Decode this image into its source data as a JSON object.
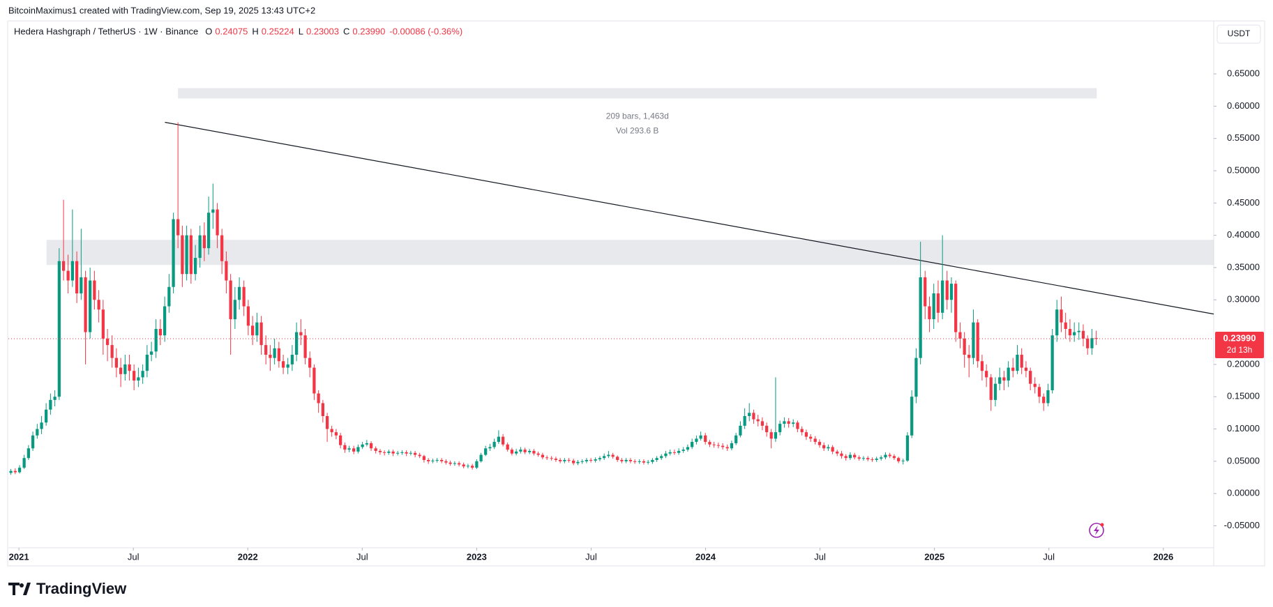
{
  "header": {
    "author_line": "BitcoinMaximus1 created with TradingView.com, Sep 19, 2025 13:43 UTC+2",
    "symbol": "Hedera Hashgraph / TetherUS · 1W · Binance",
    "ohlc": [
      {
        "key": "O",
        "value": "0.24075"
      },
      {
        "key": "H",
        "value": "0.25224"
      },
      {
        "key": "L",
        "value": "0.23003"
      },
      {
        "key": "C",
        "value": "0.23990"
      }
    ],
    "change": "-0.00086 (-0.36%)",
    "currency": "USDT"
  },
  "footer": {
    "brand": "TradingView"
  },
  "chart_data": {
    "type": "candlestick",
    "up_color": "#089981",
    "down_color": "#f23645",
    "xlim": [
      2020.954,
      2026.22
    ],
    "xticks": [
      2021,
      {
        "value": 2021.5,
        "label": "Jul"
      },
      2022,
      {
        "value": 2022.5,
        "label": "Jul"
      },
      2023,
      {
        "value": 2023.5,
        "label": "Jul"
      },
      2024,
      {
        "value": 2024.5,
        "label": "Jul"
      },
      2025,
      {
        "value": 2025.5,
        "label": "Jul"
      },
      2026
    ],
    "ylim": [
      -0.084,
      0.731
    ],
    "yticks": [
      {
        "value": 0.65,
        "label": "0.65000"
      },
      {
        "value": 0.6,
        "label": "0.60000"
      },
      {
        "value": 0.55,
        "label": "0.55000"
      },
      {
        "value": 0.5,
        "label": "0.50000"
      },
      {
        "value": 0.45,
        "label": "0.45000"
      },
      {
        "value": 0.4,
        "label": "0.40000"
      },
      {
        "value": 0.35,
        "label": "0.35000"
      },
      {
        "value": 0.3,
        "label": "0.30000"
      },
      {
        "value": 0.2,
        "label": "0.20000"
      },
      {
        "value": 0.15,
        "label": "0.15000"
      },
      {
        "value": 0.1,
        "label": "0.10000"
      },
      {
        "value": 0.05,
        "label": "0.05000"
      },
      {
        "value": 0,
        "label": "0.00000"
      },
      {
        "value": -0.05,
        "label": "-0.05000"
      }
    ],
    "price_label": "0.23990",
    "countdown": "2d 13h",
    "annotations": {
      "trendline": {
        "x": [
          2021.638,
          2026.22
        ],
        "y": [
          0.575,
          0.278
        ]
      },
      "ranges": [
        {
          "x": [
            2021.695,
            2025.709
          ],
          "y": [
            0.612,
            0.628
          ]
        },
        {
          "x": [
            2021.121,
            2026.22
          ],
          "y": [
            0.354,
            0.393
          ]
        }
      ],
      "measure_text": [
        "209 bars, 1,463d",
        "Vol 293.6 B"
      ]
    },
    "x": [
      2020.965,
      2020.984,
      2021.003,
      2021.023,
      2021.042,
      2021.061,
      2021.08,
      2021.099,
      2021.119,
      2021.138,
      2021.157,
      2021.176,
      2021.195,
      2021.215,
      2021.234,
      2021.253,
      2021.272,
      2021.291,
      2021.311,
      2021.33,
      2021.349,
      2021.368,
      2021.387,
      2021.407,
      2021.426,
      2021.445,
      2021.464,
      2021.483,
      2021.503,
      2021.522,
      2021.541,
      2021.56,
      2021.579,
      2021.599,
      2021.618,
      2021.637,
      2021.656,
      2021.675,
      2021.695,
      2021.714,
      2021.733,
      2021.752,
      2021.771,
      2021.791,
      2021.81,
      2021.829,
      2021.848,
      2021.867,
      2021.887,
      2021.906,
      2021.925,
      2021.944,
      2021.963,
      2021.983,
      2022.002,
      2022.021,
      2022.04,
      2022.059,
      2022.079,
      2022.098,
      2022.117,
      2022.136,
      2022.155,
      2022.175,
      2022.194,
      2022.213,
      2022.232,
      2022.251,
      2022.271,
      2022.29,
      2022.309,
      2022.328,
      2022.347,
      2022.367,
      2022.386,
      2022.405,
      2022.424,
      2022.443,
      2022.463,
      2022.482,
      2022.501,
      2022.52,
      2022.539,
      2022.559,
      2022.578,
      2022.597,
      2022.616,
      2022.635,
      2022.655,
      2022.674,
      2022.693,
      2022.712,
      2022.731,
      2022.751,
      2022.77,
      2022.789,
      2022.808,
      2022.827,
      2022.847,
      2022.866,
      2022.885,
      2022.904,
      2022.923,
      2022.943,
      2022.962,
      2022.981,
      2023.0,
      2023.019,
      2023.039,
      2023.058,
      2023.077,
      2023.096,
      2023.115,
      2023.135,
      2023.154,
      2023.173,
      2023.192,
      2023.211,
      2023.231,
      2023.25,
      2023.269,
      2023.288,
      2023.307,
      2023.327,
      2023.346,
      2023.365,
      2023.384,
      2023.403,
      2023.423,
      2023.442,
      2023.461,
      2023.48,
      2023.499,
      2023.519,
      2023.538,
      2023.557,
      2023.576,
      2023.595,
      2023.615,
      2023.634,
      2023.653,
      2023.672,
      2023.691,
      2023.711,
      2023.73,
      2023.749,
      2023.768,
      2023.787,
      2023.807,
      2023.826,
      2023.845,
      2023.864,
      2023.883,
      2023.903,
      2023.922,
      2023.941,
      2023.96,
      2023.979,
      2023.999,
      2024.018,
      2024.037,
      2024.056,
      2024.075,
      2024.095,
      2024.114,
      2024.133,
      2024.152,
      2024.171,
      2024.191,
      2024.21,
      2024.229,
      2024.248,
      2024.267,
      2024.287,
      2024.306,
      2024.325,
      2024.344,
      2024.363,
      2024.383,
      2024.402,
      2024.421,
      2024.44,
      2024.459,
      2024.479,
      2024.498,
      2024.517,
      2024.536,
      2024.555,
      2024.575,
      2024.594,
      2024.613,
      2024.632,
      2024.651,
      2024.671,
      2024.69,
      2024.709,
      2024.728,
      2024.747,
      2024.767,
      2024.786,
      2024.805,
      2024.824,
      2024.843,
      2024.863,
      2024.882,
      2024.901,
      2024.92,
      2024.939,
      2024.959,
      2024.978,
      2024.997,
      2025.016,
      2025.035,
      2025.055,
      2025.074,
      2025.093,
      2025.112,
      2025.131,
      2025.151,
      2025.17,
      2025.189,
      2025.208,
      2025.227,
      2025.247,
      2025.266,
      2025.285,
      2025.304,
      2025.323,
      2025.343,
      2025.362,
      2025.381,
      2025.4,
      2025.419,
      2025.439,
      2025.458,
      2025.477,
      2025.496,
      2025.515,
      2025.535,
      2025.554,
      2025.573,
      2025.592,
      2025.611,
      2025.631,
      2025.65,
      2025.669,
      2025.688,
      2025.707
    ],
    "open": [
      0.032,
      0.035,
      0.033,
      0.04,
      0.055,
      0.07,
      0.09,
      0.1,
      0.11,
      0.13,
      0.145,
      0.15,
      0.36,
      0.345,
      0.33,
      0.36,
      0.31,
      0.335,
      0.25,
      0.33,
      0.3,
      0.285,
      0.24,
      0.23,
      0.21,
      0.195,
      0.185,
      0.2,
      0.19,
      0.175,
      0.18,
      0.19,
      0.215,
      0.22,
      0.255,
      0.245,
      0.29,
      0.32,
      0.425,
      0.4,
      0.34,
      0.4,
      0.34,
      0.365,
      0.4,
      0.38,
      0.435,
      0.44,
      0.4,
      0.36,
      0.33,
      0.27,
      0.3,
      0.32,
      0.29,
      0.26,
      0.245,
      0.265,
      0.23,
      0.215,
      0.21,
      0.225,
      0.205,
      0.195,
      0.2,
      0.215,
      0.25,
      0.245,
      0.21,
      0.195,
      0.155,
      0.14,
      0.12,
      0.1,
      0.095,
      0.09,
      0.075,
      0.068,
      0.07,
      0.065,
      0.072,
      0.076,
      0.078,
      0.07,
      0.066,
      0.064,
      0.063,
      0.065,
      0.062,
      0.063,
      0.064,
      0.062,
      0.063,
      0.06,
      0.058,
      0.052,
      0.05,
      0.051,
      0.052,
      0.05,
      0.048,
      0.046,
      0.047,
      0.045,
      0.042,
      0.043,
      0.04,
      0.05,
      0.06,
      0.07,
      0.072,
      0.08,
      0.088,
      0.076,
      0.068,
      0.062,
      0.065,
      0.068,
      0.064,
      0.066,
      0.062,
      0.06,
      0.056,
      0.055,
      0.054,
      0.052,
      0.05,
      0.052,
      0.051,
      0.047,
      0.049,
      0.05,
      0.052,
      0.051,
      0.053,
      0.055,
      0.058,
      0.06,
      0.057,
      0.052,
      0.05,
      0.052,
      0.05,
      0.049,
      0.05,
      0.048,
      0.049,
      0.052,
      0.055,
      0.058,
      0.062,
      0.064,
      0.063,
      0.066,
      0.068,
      0.072,
      0.08,
      0.085,
      0.09,
      0.08,
      0.076,
      0.075,
      0.074,
      0.072,
      0.07,
      0.078,
      0.09,
      0.105,
      0.12,
      0.125,
      0.115,
      0.112,
      0.105,
      0.095,
      0.085,
      0.095,
      0.108,
      0.112,
      0.108,
      0.11,
      0.1,
      0.095,
      0.088,
      0.085,
      0.08,
      0.075,
      0.07,
      0.072,
      0.065,
      0.062,
      0.058,
      0.055,
      0.06,
      0.056,
      0.054,
      0.055,
      0.053,
      0.052,
      0.054,
      0.056,
      0.06,
      0.058,
      0.055,
      0.05,
      0.051,
      0.09,
      0.15,
      0.21,
      0.335,
      0.29,
      0.27,
      0.31,
      0.28,
      0.33,
      0.3,
      0.325,
      0.25,
      0.24,
      0.215,
      0.21,
      0.265,
      0.205,
      0.19,
      0.18,
      0.145,
      0.17,
      0.18,
      0.175,
      0.195,
      0.19,
      0.215,
      0.195,
      0.19,
      0.17,
      0.165,
      0.15,
      0.14,
      0.16,
      0.245,
      0.285,
      0.265,
      0.255,
      0.245,
      0.25,
      0.252,
      0.24,
      0.225,
      0.24075
    ],
    "high": [
      0.038,
      0.039,
      0.044,
      0.06,
      0.075,
      0.096,
      0.108,
      0.12,
      0.14,
      0.155,
      0.16,
      0.38,
      0.455,
      0.37,
      0.44,
      0.375,
      0.41,
      0.345,
      0.35,
      0.345,
      0.315,
      0.3,
      0.255,
      0.245,
      0.225,
      0.21,
      0.215,
      0.215,
      0.2,
      0.195,
      0.2,
      0.23,
      0.235,
      0.27,
      0.27,
      0.305,
      0.34,
      0.435,
      0.575,
      0.415,
      0.415,
      0.41,
      0.385,
      0.415,
      0.42,
      0.46,
      0.48,
      0.45,
      0.41,
      0.375,
      0.34,
      0.32,
      0.335,
      0.33,
      0.3,
      0.275,
      0.28,
      0.275,
      0.245,
      0.23,
      0.24,
      0.235,
      0.215,
      0.21,
      0.23,
      0.265,
      0.27,
      0.255,
      0.22,
      0.2,
      0.16,
      0.145,
      0.125,
      0.105,
      0.1,
      0.094,
      0.079,
      0.074,
      0.074,
      0.076,
      0.08,
      0.083,
      0.081,
      0.073,
      0.069,
      0.067,
      0.068,
      0.068,
      0.066,
      0.067,
      0.067,
      0.066,
      0.066,
      0.063,
      0.06,
      0.055,
      0.054,
      0.055,
      0.055,
      0.053,
      0.051,
      0.05,
      0.05,
      0.048,
      0.046,
      0.046,
      0.053,
      0.063,
      0.074,
      0.077,
      0.085,
      0.098,
      0.092,
      0.079,
      0.071,
      0.069,
      0.072,
      0.071,
      0.069,
      0.069,
      0.065,
      0.063,
      0.059,
      0.058,
      0.057,
      0.055,
      0.055,
      0.055,
      0.054,
      0.052,
      0.053,
      0.055,
      0.055,
      0.056,
      0.058,
      0.062,
      0.066,
      0.063,
      0.059,
      0.055,
      0.055,
      0.055,
      0.053,
      0.053,
      0.053,
      0.052,
      0.055,
      0.058,
      0.061,
      0.066,
      0.068,
      0.068,
      0.07,
      0.072,
      0.076,
      0.085,
      0.09,
      0.096,
      0.094,
      0.083,
      0.08,
      0.079,
      0.078,
      0.076,
      0.082,
      0.094,
      0.112,
      0.132,
      0.14,
      0.13,
      0.122,
      0.118,
      0.11,
      0.1,
      0.18,
      0.113,
      0.118,
      0.117,
      0.115,
      0.113,
      0.104,
      0.099,
      0.092,
      0.089,
      0.084,
      0.079,
      0.076,
      0.075,
      0.068,
      0.066,
      0.061,
      0.064,
      0.063,
      0.059,
      0.058,
      0.058,
      0.056,
      0.057,
      0.059,
      0.064,
      0.063,
      0.061,
      0.057,
      0.054,
      0.095,
      0.16,
      0.225,
      0.39,
      0.345,
      0.305,
      0.325,
      0.33,
      0.4,
      0.345,
      0.335,
      0.33,
      0.265,
      0.25,
      0.23,
      0.285,
      0.27,
      0.215,
      0.2,
      0.185,
      0.18,
      0.195,
      0.19,
      0.205,
      0.21,
      0.23,
      0.225,
      0.205,
      0.195,
      0.18,
      0.17,
      0.155,
      0.17,
      0.255,
      0.3,
      0.305,
      0.28,
      0.27,
      0.265,
      0.265,
      0.262,
      0.245,
      0.255,
      0.25224
    ],
    "low": [
      0.029,
      0.03,
      0.031,
      0.038,
      0.052,
      0.066,
      0.085,
      0.092,
      0.105,
      0.122,
      0.135,
      0.145,
      0.33,
      0.31,
      0.32,
      0.295,
      0.3,
      0.2,
      0.24,
      0.285,
      0.265,
      0.215,
      0.205,
      0.195,
      0.18,
      0.165,
      0.175,
      0.175,
      0.16,
      0.165,
      0.17,
      0.18,
      0.205,
      0.21,
      0.23,
      0.235,
      0.28,
      0.31,
      0.38,
      0.32,
      0.33,
      0.325,
      0.33,
      0.35,
      0.36,
      0.37,
      0.41,
      0.38,
      0.34,
      0.31,
      0.215,
      0.255,
      0.285,
      0.275,
      0.245,
      0.23,
      0.235,
      0.215,
      0.2,
      0.19,
      0.2,
      0.195,
      0.185,
      0.185,
      0.19,
      0.205,
      0.23,
      0.2,
      0.18,
      0.145,
      0.125,
      0.11,
      0.08,
      0.088,
      0.084,
      0.07,
      0.063,
      0.064,
      0.061,
      0.062,
      0.069,
      0.073,
      0.066,
      0.062,
      0.06,
      0.059,
      0.06,
      0.058,
      0.059,
      0.06,
      0.058,
      0.059,
      0.056,
      0.055,
      0.048,
      0.046,
      0.047,
      0.048,
      0.047,
      0.045,
      0.043,
      0.043,
      0.042,
      0.039,
      0.039,
      0.037,
      0.038,
      0.048,
      0.058,
      0.066,
      0.069,
      0.077,
      0.073,
      0.065,
      0.059,
      0.059,
      0.062,
      0.061,
      0.061,
      0.059,
      0.057,
      0.053,
      0.052,
      0.051,
      0.049,
      0.047,
      0.047,
      0.048,
      0.044,
      0.044,
      0.046,
      0.047,
      0.048,
      0.048,
      0.05,
      0.052,
      0.055,
      0.054,
      0.049,
      0.047,
      0.047,
      0.047,
      0.046,
      0.046,
      0.045,
      0.045,
      0.046,
      0.049,
      0.052,
      0.055,
      0.059,
      0.06,
      0.06,
      0.063,
      0.065,
      0.069,
      0.076,
      0.082,
      0.076,
      0.072,
      0.071,
      0.07,
      0.068,
      0.066,
      0.067,
      0.075,
      0.087,
      0.1,
      0.112,
      0.108,
      0.104,
      0.098,
      0.088,
      0.07,
      0.08,
      0.09,
      0.102,
      0.102,
      0.103,
      0.095,
      0.09,
      0.083,
      0.08,
      0.076,
      0.071,
      0.066,
      0.066,
      0.061,
      0.058,
      0.054,
      0.051,
      0.052,
      0.053,
      0.051,
      0.051,
      0.05,
      0.049,
      0.049,
      0.051,
      0.053,
      0.055,
      0.052,
      0.047,
      0.045,
      0.049,
      0.086,
      0.14,
      0.2,
      0.27,
      0.25,
      0.255,
      0.265,
      0.27,
      0.285,
      0.28,
      0.235,
      0.225,
      0.195,
      0.18,
      0.2,
      0.195,
      0.175,
      0.165,
      0.128,
      0.135,
      0.16,
      0.16,
      0.165,
      0.18,
      0.185,
      0.185,
      0.18,
      0.16,
      0.155,
      0.14,
      0.128,
      0.135,
      0.155,
      0.235,
      0.25,
      0.24,
      0.235,
      0.235,
      0.238,
      0.228,
      0.215,
      0.215,
      0.23003
    ],
    "close": [
      0.035,
      0.033,
      0.04,
      0.055,
      0.07,
      0.09,
      0.1,
      0.11,
      0.13,
      0.145,
      0.15,
      0.36,
      0.345,
      0.33,
      0.36,
      0.31,
      0.335,
      0.25,
      0.33,
      0.3,
      0.285,
      0.24,
      0.23,
      0.21,
      0.195,
      0.185,
      0.2,
      0.19,
      0.175,
      0.18,
      0.19,
      0.215,
      0.22,
      0.255,
      0.245,
      0.29,
      0.32,
      0.425,
      0.4,
      0.34,
      0.4,
      0.34,
      0.365,
      0.4,
      0.38,
      0.435,
      0.44,
      0.4,
      0.36,
      0.33,
      0.27,
      0.3,
      0.32,
      0.29,
      0.26,
      0.245,
      0.265,
      0.23,
      0.215,
      0.21,
      0.225,
      0.205,
      0.195,
      0.2,
      0.215,
      0.25,
      0.245,
      0.21,
      0.195,
      0.155,
      0.14,
      0.12,
      0.1,
      0.095,
      0.09,
      0.075,
      0.068,
      0.07,
      0.065,
      0.072,
      0.076,
      0.078,
      0.07,
      0.066,
      0.064,
      0.063,
      0.065,
      0.062,
      0.063,
      0.064,
      0.062,
      0.063,
      0.06,
      0.058,
      0.052,
      0.05,
      0.051,
      0.052,
      0.05,
      0.048,
      0.046,
      0.047,
      0.045,
      0.042,
      0.043,
      0.04,
      0.05,
      0.06,
      0.07,
      0.072,
      0.08,
      0.088,
      0.076,
      0.068,
      0.062,
      0.065,
      0.068,
      0.064,
      0.066,
      0.062,
      0.06,
      0.056,
      0.055,
      0.054,
      0.052,
      0.05,
      0.052,
      0.051,
      0.047,
      0.049,
      0.05,
      0.052,
      0.051,
      0.053,
      0.055,
      0.058,
      0.06,
      0.057,
      0.052,
      0.05,
      0.052,
      0.05,
      0.049,
      0.05,
      0.048,
      0.049,
      0.052,
      0.055,
      0.058,
      0.062,
      0.064,
      0.063,
      0.066,
      0.068,
      0.072,
      0.08,
      0.085,
      0.09,
      0.08,
      0.076,
      0.075,
      0.074,
      0.072,
      0.07,
      0.078,
      0.09,
      0.105,
      0.12,
      0.125,
      0.115,
      0.112,
      0.105,
      0.095,
      0.085,
      0.095,
      0.108,
      0.112,
      0.108,
      0.11,
      0.1,
      0.095,
      0.088,
      0.085,
      0.08,
      0.075,
      0.07,
      0.072,
      0.065,
      0.062,
      0.058,
      0.055,
      0.06,
      0.056,
      0.054,
      0.055,
      0.053,
      0.052,
      0.054,
      0.056,
      0.06,
      0.058,
      0.055,
      0.05,
      0.051,
      0.09,
      0.15,
      0.21,
      0.335,
      0.29,
      0.27,
      0.31,
      0.28,
      0.33,
      0.3,
      0.325,
      0.25,
      0.24,
      0.215,
      0.21,
      0.265,
      0.205,
      0.19,
      0.18,
      0.145,
      0.17,
      0.18,
      0.175,
      0.195,
      0.19,
      0.215,
      0.195,
      0.19,
      0.17,
      0.165,
      0.15,
      0.14,
      0.16,
      0.245,
      0.285,
      0.265,
      0.255,
      0.245,
      0.25,
      0.252,
      0.24,
      0.225,
      0.24075,
      0.2399
    ]
  }
}
